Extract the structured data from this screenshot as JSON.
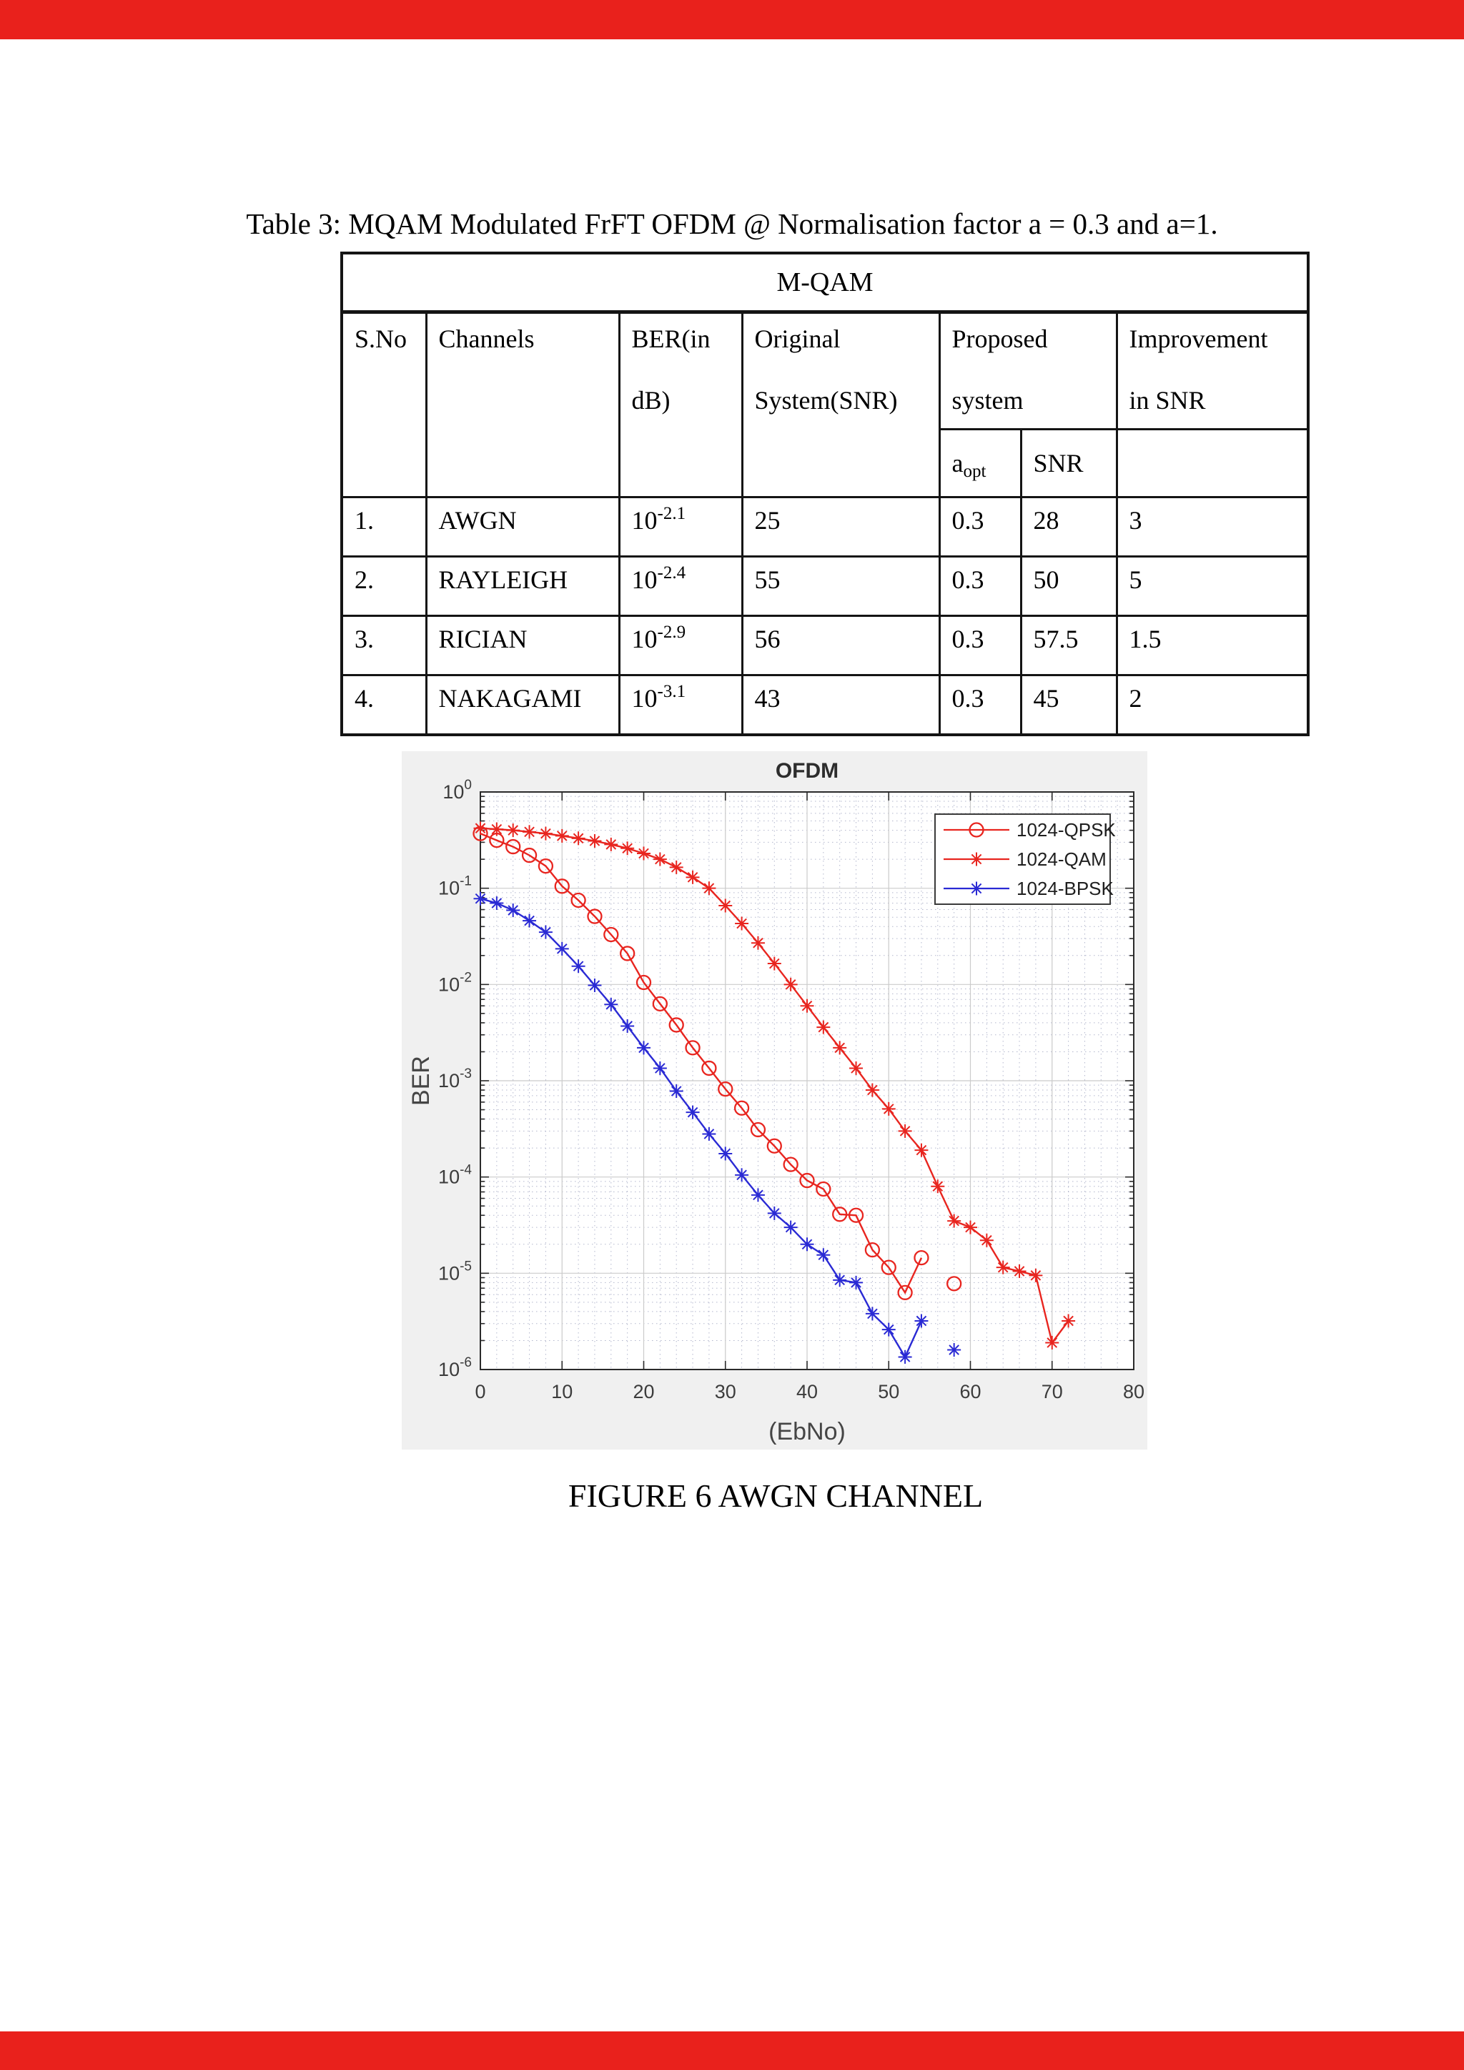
{
  "page": {
    "bar_color": "#e9211c",
    "title": "Table 3: MQAM Modulated FrFT OFDM @ Normalisation factor a = 0.3 and a=1.",
    "figure_caption": "FIGURE 6 AWGN CHANNEL"
  },
  "table": {
    "group_header": "M-QAM",
    "headers": {
      "sno": "S.No",
      "channels": "Channels",
      "ber_line1": "BER(in",
      "ber_line2": "dB)",
      "original_line1": "Original",
      "original_line2": "System(SNR)",
      "proposed_line1": "Proposed",
      "proposed_line2": "system",
      "improvement_line1": "Improvement",
      "improvement_line2": "in SNR",
      "aopt_base": "a",
      "aopt_sub": "opt",
      "snr": "SNR"
    },
    "rows": [
      {
        "sno": "1.",
        "channel": "AWGN",
        "ber_base": "10",
        "ber_exp": "-2.1",
        "original": "25",
        "aopt": "0.3",
        "snr": "28",
        "improvement": "3"
      },
      {
        "sno": "2.",
        "channel": "RAYLEIGH",
        "ber_base": "10",
        "ber_exp": "-2.4",
        "original": "55",
        "aopt": "0.3",
        "snr": "50",
        "improvement": "5"
      },
      {
        "sno": "3.",
        "channel": "RICIAN",
        "ber_base": "10",
        "ber_exp": "-2.9",
        "original": "56",
        "aopt": "0.3",
        "snr": "57.5",
        "improvement": "1.5"
      },
      {
        "sno": "4.",
        "channel": "NAKAGAMI",
        "ber_base": "10",
        "ber_exp": "-3.1",
        "original": "43",
        "aopt": "0.3",
        "snr": "45",
        "improvement": "2"
      }
    ]
  },
  "chart_data": {
    "type": "line",
    "title": "OFDM",
    "xlabel": "(EbNo)",
    "ylabel": "BER",
    "x_range": [
      0,
      80
    ],
    "x_ticks": [
      0,
      10,
      20,
      30,
      40,
      50,
      60,
      70,
      80
    ],
    "x_minor_step": 2,
    "y_scale": "log",
    "y_tick_exponents": [
      0,
      -1,
      -2,
      -3,
      -4,
      -5,
      -6
    ],
    "ylim": [
      1e-06,
      1
    ],
    "grid": "major+minor",
    "legend_position": "northeast",
    "colors": {
      "figure_bg": "#f0f0f0",
      "plot_bg": "#ffffff",
      "grid_major": "#cbcbcb",
      "grid_minor": "#b3b7cd",
      "axis": "#2a2a2a",
      "tick_text": "#3c3c3c",
      "label_text": "#454545",
      "title_text": "#2d2d2d",
      "red": "#e8251f",
      "blue": "#2a2ad4"
    },
    "series": [
      {
        "name": "1024-QPSK",
        "color": "#e8251f",
        "marker": "circle",
        "x_start": 0,
        "x_step": 2,
        "values": [
          0.37,
          0.315,
          0.27,
          0.22,
          0.17,
          0.105,
          0.075,
          0.051,
          0.033,
          0.021,
          0.0105,
          0.0063,
          0.0038,
          0.0022,
          0.00135,
          0.00082,
          0.00052,
          0.00031,
          0.00021,
          0.000135,
          9.2e-05,
          7.5e-05,
          4.1e-05,
          4e-05,
          1.75e-05,
          1.15e-05,
          6.3e-06,
          1.45e-05
        ],
        "extra_points": [
          [
            58,
            7.8e-06
          ]
        ]
      },
      {
        "name": "1024-QAM",
        "color": "#e8251f",
        "marker": "asterisk",
        "x_start": 0,
        "x_step": 2,
        "values": [
          0.42,
          0.41,
          0.4,
          0.385,
          0.37,
          0.35,
          0.33,
          0.31,
          0.285,
          0.26,
          0.23,
          0.2,
          0.165,
          0.13,
          0.1,
          0.066,
          0.043,
          0.027,
          0.0165,
          0.01,
          0.006,
          0.0036,
          0.0022,
          0.00135,
          0.0008,
          0.00051,
          0.0003,
          0.00019,
          8e-05,
          3.5e-05,
          3e-05,
          2.2e-05,
          1.15e-05,
          1.05e-05,
          9.5e-06,
          1.9e-06,
          3.2e-06
        ],
        "extra_points": []
      },
      {
        "name": "1024-BPSK",
        "color": "#2a2ad4",
        "marker": "asterisk",
        "x_start": 0,
        "x_step": 2,
        "values": [
          0.078,
          0.07,
          0.059,
          0.046,
          0.035,
          0.0235,
          0.0155,
          0.0098,
          0.0062,
          0.0037,
          0.0022,
          0.00135,
          0.00078,
          0.00047,
          0.00028,
          0.000175,
          0.000105,
          6.5e-05,
          4.2e-05,
          3e-05,
          2e-05,
          1.55e-05,
          8.5e-06,
          8e-06,
          3.8e-06,
          2.6e-06,
          1.35e-06,
          3.2e-06
        ],
        "extra_points": [
          [
            58,
            1.6e-06
          ]
        ]
      }
    ]
  }
}
